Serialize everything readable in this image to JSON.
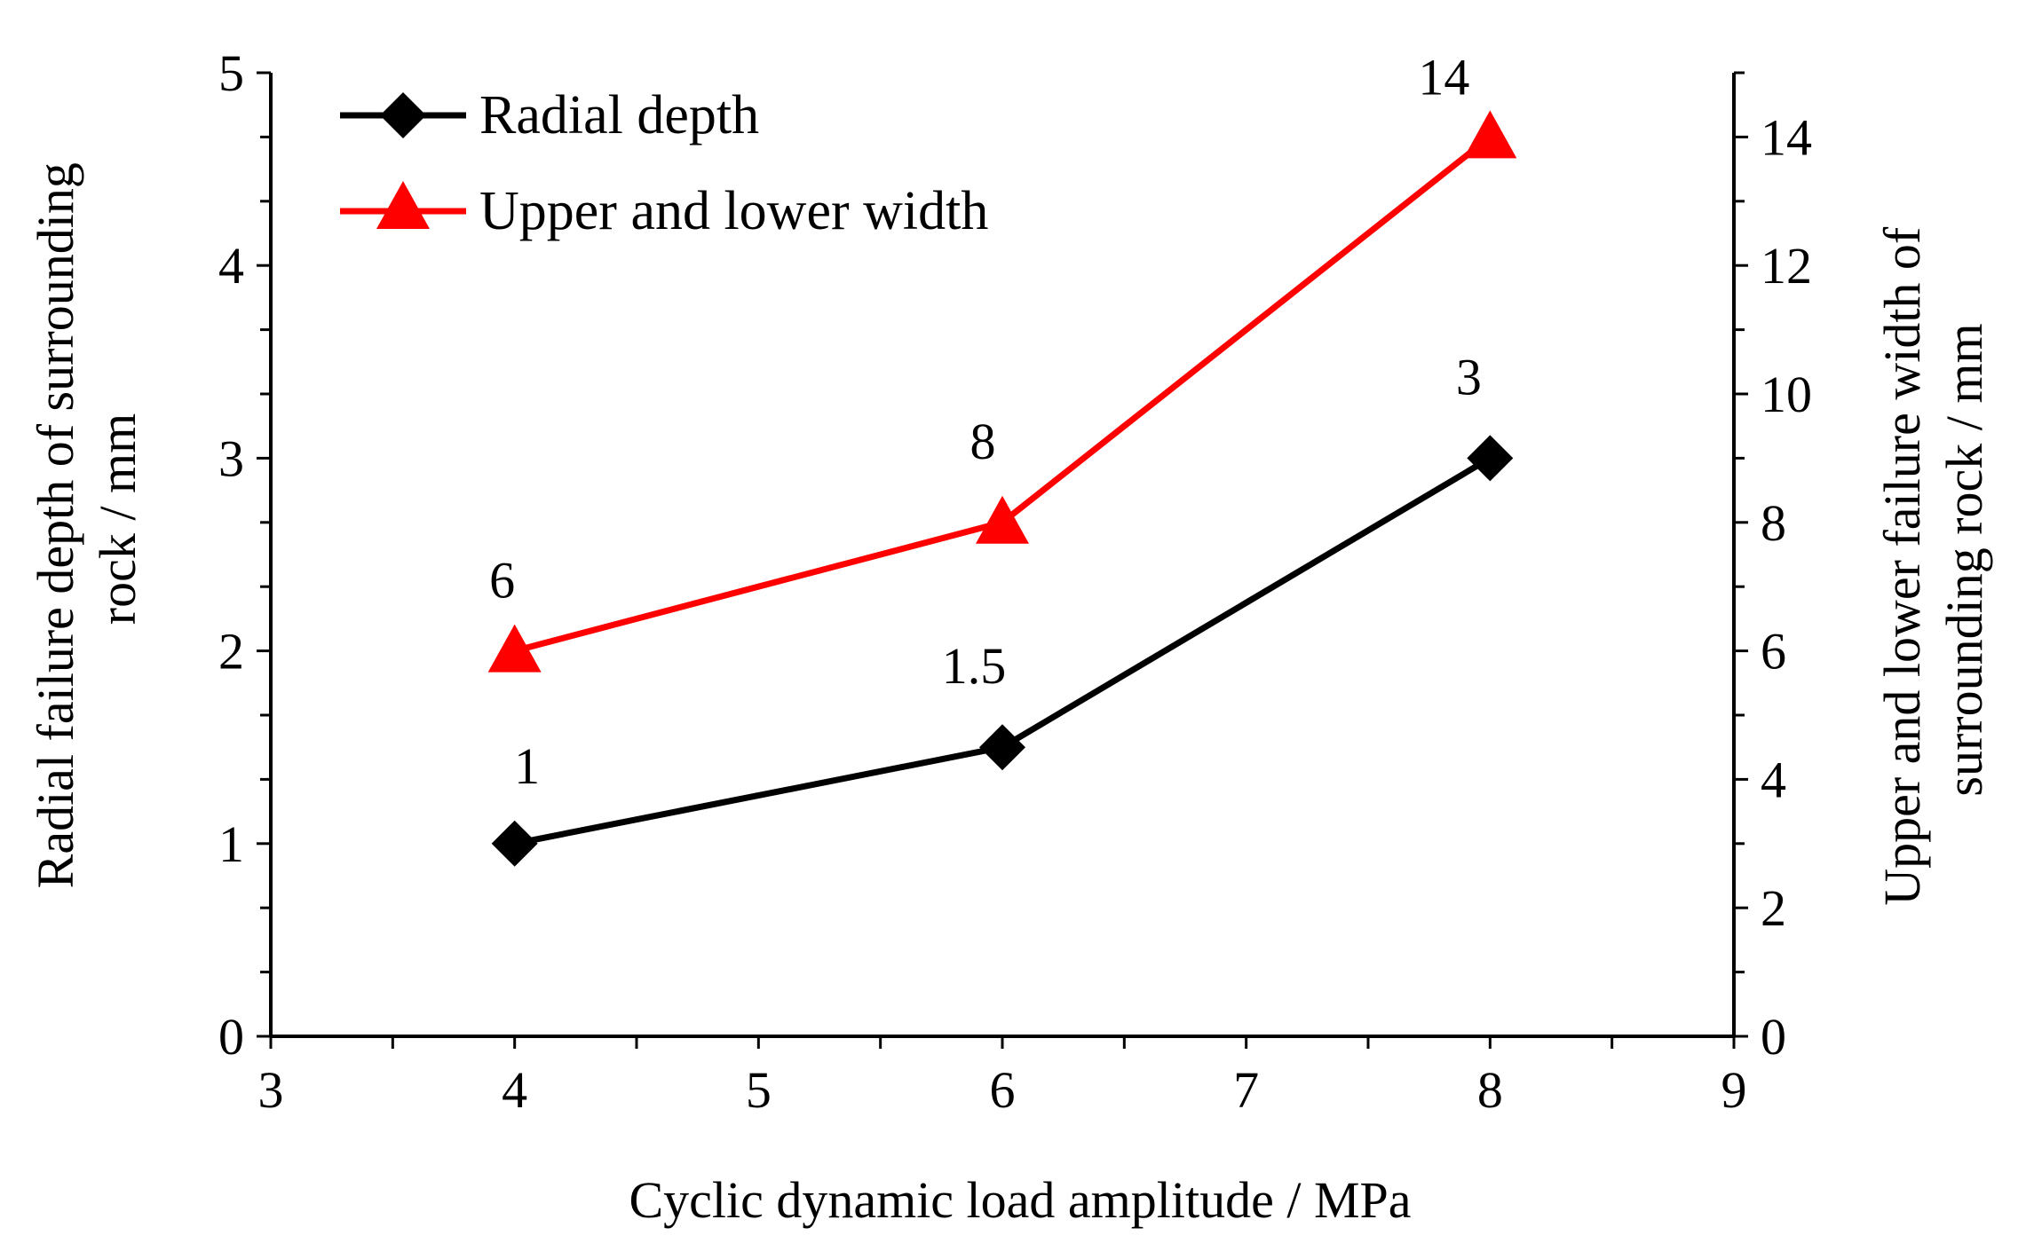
{
  "chart_data": {
    "type": "line",
    "x": [
      4,
      6,
      8
    ],
    "xlabel": "Cyclic dynamic load amplitude / MPa",
    "xlim": [
      3,
      9
    ],
    "x_ticks": [
      3,
      4,
      5,
      6,
      7,
      8,
      9
    ],
    "ylabel_left": [
      "Radial failure depth of surrounding",
      "rock  / mm"
    ],
    "ylim_left": [
      0,
      5
    ],
    "y_ticks_left": [
      0,
      1,
      2,
      3,
      4,
      5
    ],
    "ylabel_right": [
      "Upper and lower failure width of",
      "surrounding rock / mm"
    ],
    "ylim_right": [
      0,
      15
    ],
    "y_ticks_right": [
      0,
      2,
      4,
      6,
      8,
      10,
      12,
      14
    ],
    "legend_position": "top-left",
    "grid": false,
    "series": [
      {
        "name": "Radial depth",
        "axis": "left",
        "marker": "diamond",
        "color": "#000000",
        "values": [
          1,
          1.5,
          3
        ],
        "labels": [
          "1",
          "1.5",
          "3"
        ]
      },
      {
        "name": "Upper and lower width",
        "axis": "right",
        "marker": "triangle",
        "color": "#ff0000",
        "values": [
          6,
          8,
          14
        ],
        "labels": [
          "6",
          "8",
          "14"
        ]
      }
    ]
  }
}
